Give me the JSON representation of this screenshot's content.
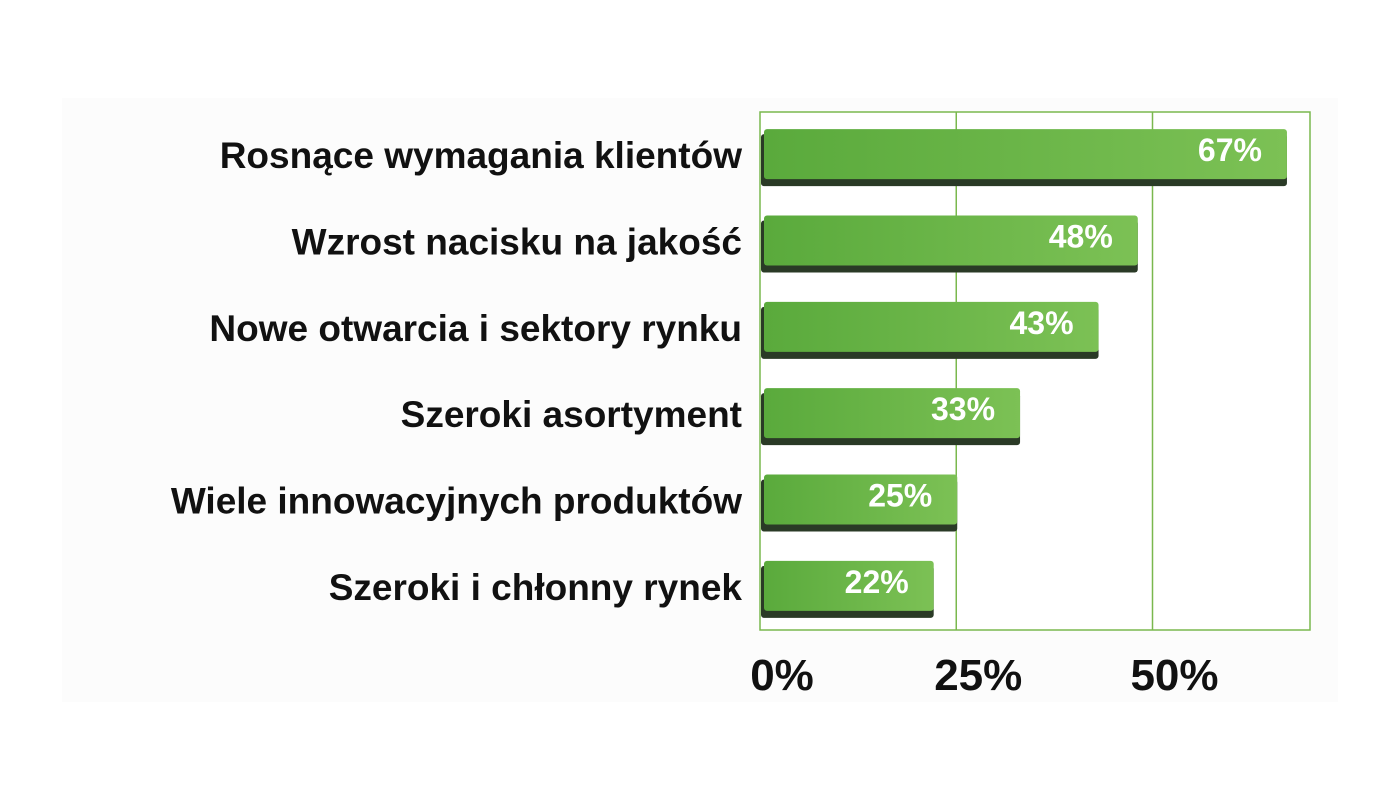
{
  "chart_data": {
    "type": "bar",
    "orientation": "horizontal",
    "title": "",
    "xlabel": "",
    "ylabel": "",
    "categories": [
      "Rosnące wymagania klientów",
      "Wzrost nacisku na jakość",
      "Nowe otwarcia i sektory rynku",
      "Szeroki asortyment",
      "Wiele innowacyjnych produktów",
      "Szeroki i chłonny rynek"
    ],
    "values": [
      67,
      48,
      43,
      33,
      25,
      22
    ],
    "value_labels": [
      "67%",
      "48%",
      "43%",
      "33%",
      "25%",
      "22%"
    ],
    "xlim": [
      0,
      70
    ],
    "x_ticks": [
      0,
      25,
      50
    ],
    "x_tick_labels": [
      "0%",
      "25%",
      "50%"
    ],
    "grid": true,
    "colors": {
      "bar": "#5aaa3c",
      "bar_light": "#7cc155",
      "bar_shadow": "#2a3a26",
      "grid": "#7ab84e",
      "plot_background": "#ffffff",
      "panel_background": "#fcfcfc"
    }
  }
}
